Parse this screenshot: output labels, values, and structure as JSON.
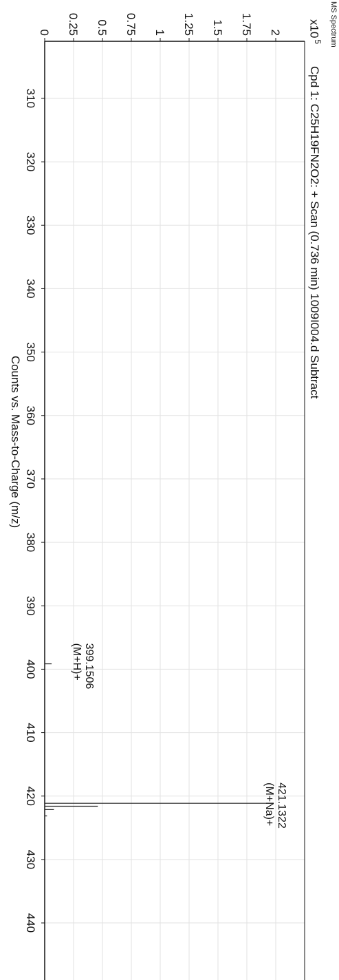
{
  "header": {
    "label": "MS Spectrum",
    "y_multiplier_base": "x10",
    "y_multiplier_exp": "5"
  },
  "chart_data": {
    "type": "line",
    "subtype": "mass-spectrum-stick-plot",
    "title": "Cpd 1: C25H19FN2O2: + Scan (0.736 min) 1009I004.d  Subtract",
    "xlabel": "Counts vs. Mass-to-Charge (m/z)",
    "ylabel": "",
    "xlim": [
      301,
      449
    ],
    "ylim": [
      0,
      2.25
    ],
    "y_scale_note": "x10 5",
    "x_ticks": [
      310,
      320,
      330,
      340,
      350,
      360,
      370,
      380,
      390,
      400,
      410,
      420,
      430,
      440
    ],
    "y_ticks": [
      0,
      0.25,
      0.5,
      0.75,
      1,
      1.25,
      1.5,
      1.75,
      2
    ],
    "y_tick_labels": [
      "0",
      "0.25",
      "0.5",
      "0.75",
      "1",
      "1.25",
      "1.5",
      "1.75",
      "2"
    ],
    "grid": true,
    "peaks": [
      {
        "mz": 399.1506,
        "intensity": 0.06
      },
      {
        "mz": 421.1322,
        "intensity": 1.97
      },
      {
        "mz": 421.6,
        "intensity": 0.46
      },
      {
        "mz": 422.13,
        "intensity": 0.08
      },
      {
        "mz": 423.13,
        "intensity": 0.02
      }
    ],
    "annotations": [
      {
        "mz": 399.1506,
        "lines": [
          "399.1506",
          "(M+H)+"
        ]
      },
      {
        "mz": 421.1322,
        "lines": [
          "421.1322",
          "(M+Na)+"
        ]
      }
    ]
  }
}
